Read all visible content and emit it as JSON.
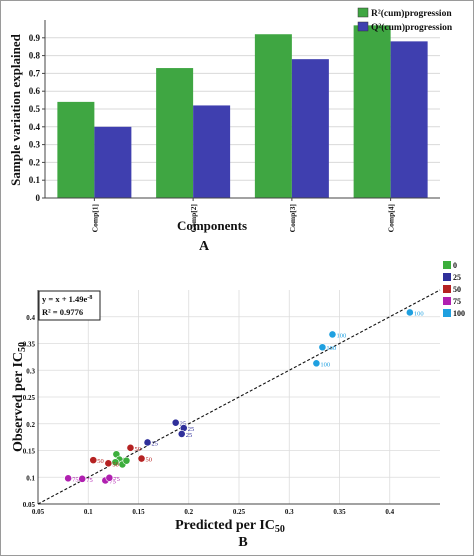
{
  "panel_a_label": "A",
  "panel_b_label": "B",
  "chart_data": [
    {
      "type": "bar",
      "categories": [
        "Comp[1]",
        "Comp[2]",
        "Comp[3]",
        "Comp[4]"
      ],
      "series": [
        {
          "name": "R²(cum)progression",
          "values": [
            0.54,
            0.73,
            0.92,
            0.97
          ],
          "color": "#3fa642"
        },
        {
          "name": "Q²(cum)progression",
          "values": [
            0.4,
            0.52,
            0.78,
            0.88
          ],
          "color": "#3f3faf"
        }
      ],
      "xlabel": "Components",
      "ylabel": "Sample variation explained",
      "ylim": [
        0,
        1.0
      ],
      "yticks": [
        0,
        0.1,
        0.2,
        0.3,
        0.4,
        0.5,
        0.6,
        0.7,
        0.8,
        0.9
      ],
      "grid": true,
      "legend_position": "top-right"
    },
    {
      "type": "scatter",
      "xlabel": "Predicted per IC",
      "xlabel_sub": "50",
      "ylabel": "Observed per IC",
      "ylabel_sub": "50",
      "xlim": [
        0.05,
        0.45
      ],
      "ylim": [
        0.05,
        0.45
      ],
      "xticks": [
        0.05,
        0.1,
        0.15,
        0.2,
        0.25,
        0.3,
        0.35,
        0.4
      ],
      "yticks": [
        0.05,
        0.1,
        0.15,
        0.2,
        0.25,
        0.3,
        0.35,
        0.4
      ],
      "grid": true,
      "equation_text": "y = x + 1.49e",
      "equation_exp": "-8",
      "r2_text": "R² = 0.9776",
      "fit_line": {
        "slope": 1,
        "intercept": 0
      },
      "legend_position": "right",
      "series": [
        {
          "name": "0",
          "color": "#3cae3c",
          "points": [
            {
              "x": 0.128,
              "y": 0.143,
              "label": ""
            },
            {
              "x": 0.131,
              "y": 0.133,
              "label": ""
            },
            {
              "x": 0.134,
              "y": 0.124,
              "label": ""
            },
            {
              "x": 0.127,
              "y": 0.128,
              "label": ""
            },
            {
              "x": 0.138,
              "y": 0.131,
              "label": ""
            }
          ]
        },
        {
          "name": "25",
          "color": "#2f2f9a",
          "points": [
            {
              "x": 0.159,
              "y": 0.165,
              "label": "25"
            },
            {
              "x": 0.187,
              "y": 0.202,
              "label": "25"
            },
            {
              "x": 0.195,
              "y": 0.192,
              "label": "25"
            },
            {
              "x": 0.193,
              "y": 0.181,
              "label": "25"
            }
          ]
        },
        {
          "name": "50",
          "color": "#b52222",
          "points": [
            {
              "x": 0.105,
              "y": 0.132,
              "label": "50"
            },
            {
              "x": 0.12,
              "y": 0.126,
              "label": "50"
            },
            {
              "x": 0.142,
              "y": 0.155,
              "label": "50"
            },
            {
              "x": 0.153,
              "y": 0.135,
              "label": "50"
            }
          ]
        },
        {
          "name": "75",
          "color": "#b020b0",
          "points": [
            {
              "x": 0.08,
              "y": 0.098,
              "label": "75"
            },
            {
              "x": 0.094,
              "y": 0.097,
              "label": "75"
            },
            {
              "x": 0.117,
              "y": 0.094,
              "label": "75"
            },
            {
              "x": 0.121,
              "y": 0.099,
              "label": "75"
            }
          ]
        },
        {
          "name": "100",
          "color": "#1fa0e0",
          "points": [
            {
              "x": 0.327,
              "y": 0.313,
              "label": "100"
            },
            {
              "x": 0.333,
              "y": 0.343,
              "label": "100"
            },
            {
              "x": 0.343,
              "y": 0.367,
              "label": "100"
            },
            {
              "x": 0.42,
              "y": 0.408,
              "label": "100"
            }
          ]
        }
      ]
    }
  ]
}
